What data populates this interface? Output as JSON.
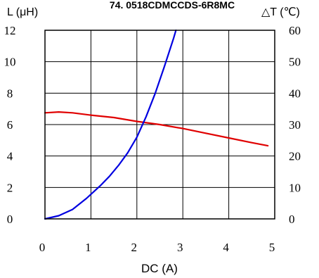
{
  "chart_data": {
    "type": "line",
    "title": "74. 0518CDMCCDS-6R8MC",
    "xlabel": "DC (A)",
    "ylabel_left": "L (μH)",
    "ylabel_right": "△T (℃)",
    "xlim": [
      0,
      5
    ],
    "ylim_left": [
      0,
      12
    ],
    "ylim_right": [
      0,
      60
    ],
    "x_ticks": [
      "0",
      "1",
      "2",
      "3",
      "4",
      "5"
    ],
    "y_left_ticks": [
      "0",
      "2",
      "4",
      "6",
      "8",
      "10",
      "12"
    ],
    "y_right_ticks": [
      "0",
      "10",
      "20",
      "30",
      "40",
      "50",
      "60"
    ],
    "grid": true,
    "series": [
      {
        "name": "",
        "axis": "left",
        "color": "#e00000",
        "x": [
          0,
          0.3,
          0.6,
          1.0,
          1.5,
          2.0,
          2.5,
          3.0,
          3.5,
          4.0,
          4.5,
          4.85
        ],
        "y": [
          6.75,
          6.8,
          6.75,
          6.6,
          6.45,
          6.2,
          6.0,
          5.75,
          5.45,
          5.15,
          4.85,
          4.65
        ]
      },
      {
        "name": "",
        "axis": "right",
        "color": "#0000e0",
        "x": [
          0,
          0.3,
          0.6,
          0.9,
          1.2,
          1.4,
          1.6,
          1.8,
          2.0,
          2.2,
          2.4,
          2.6,
          2.8,
          2.85
        ],
        "y": [
          0,
          1,
          3,
          6.5,
          10.5,
          13.5,
          17,
          21,
          26,
          32.5,
          40,
          48.5,
          57.5,
          60
        ]
      }
    ]
  }
}
